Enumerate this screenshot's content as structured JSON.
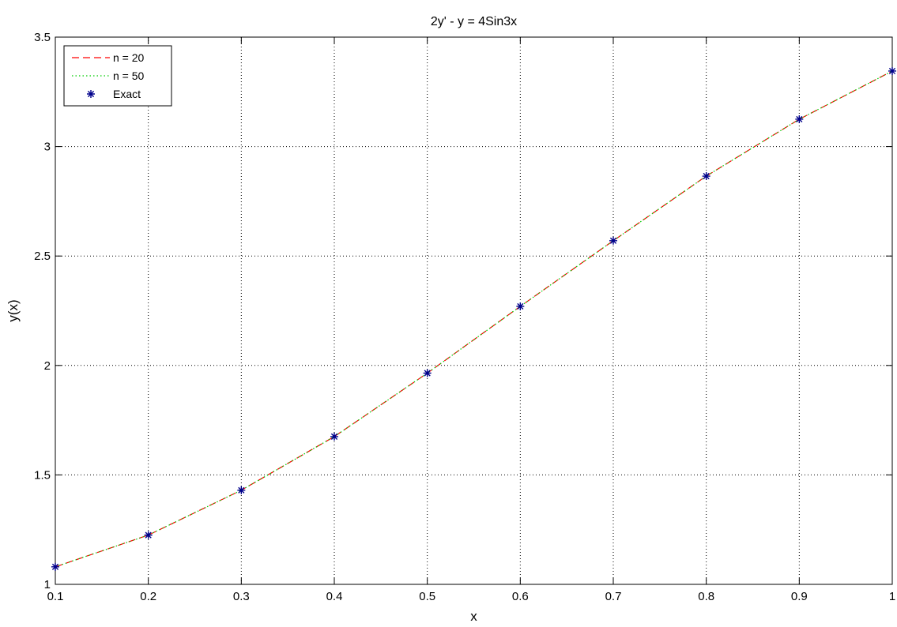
{
  "chart_data": {
    "type": "line",
    "title": "2y' - y = 4Sin3x",
    "xlabel": "x",
    "ylabel": "y(x)",
    "xlim": [
      0.1,
      1
    ],
    "ylim": [
      1,
      3.5
    ],
    "xticks": [
      "0.1",
      "0.2",
      "0.3",
      "0.4",
      "0.5",
      "0.6",
      "0.7",
      "0.8",
      "0.9",
      "1"
    ],
    "yticks": [
      "1",
      "1.5",
      "2",
      "2.5",
      "3",
      "3.5"
    ],
    "grid": true,
    "legend_position": "top-left",
    "x": [
      0.1,
      0.2,
      0.3,
      0.4,
      0.5,
      0.6,
      0.7,
      0.8,
      0.9,
      1.0
    ],
    "series": [
      {
        "name": "n = 20",
        "style": "dashed",
        "color": "#ff0000",
        "values": [
          1.08,
          1.225,
          1.43,
          1.675,
          1.965,
          2.27,
          2.57,
          2.865,
          3.125,
          3.345
        ]
      },
      {
        "name": "n = 50",
        "style": "dotted",
        "color": "#00cc00",
        "values": [
          1.08,
          1.225,
          1.43,
          1.675,
          1.965,
          2.27,
          2.57,
          2.865,
          3.125,
          3.345
        ]
      },
      {
        "name": "Exact",
        "style": "marker-star",
        "color": "#00008b",
        "values": [
          1.08,
          1.225,
          1.43,
          1.675,
          1.965,
          2.27,
          2.57,
          2.865,
          3.125,
          3.345
        ]
      }
    ]
  }
}
